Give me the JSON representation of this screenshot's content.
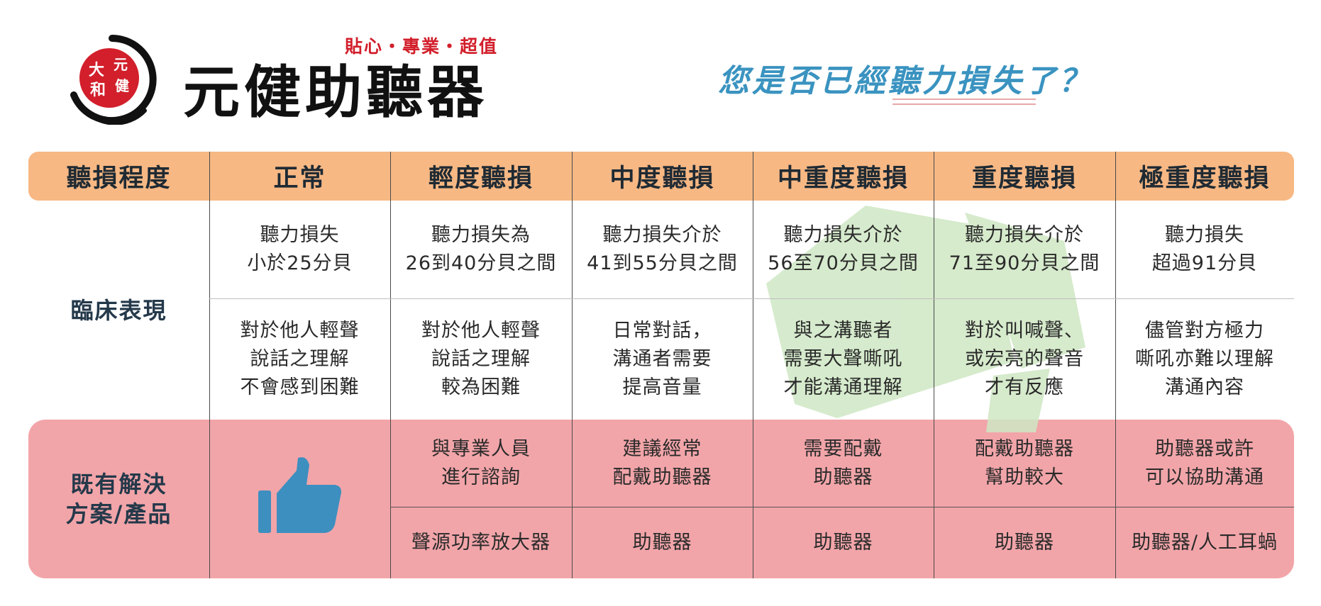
{
  "header": {
    "slogan": "貼心・專業・超值",
    "brand": "元健助聽器",
    "question": "您是否已經聽力損失了？",
    "logo_text": "大元和健"
  },
  "table": {
    "corner_label": "聽損程度",
    "columns": [
      "正常",
      "輕度聽損",
      "中度聽損",
      "中重度聽損",
      "重度聽損",
      "極重度聽損"
    ],
    "clinical_label": "臨床表現",
    "hearing_loss": [
      "聽力損失\n小於25分貝",
      "聽力損失為\n26到40分貝之間",
      "聽力損失介於\n41到55分貝之間",
      "聽力損失介於\n56至70分貝之間",
      "聽力損失介於\n71至90分貝之間",
      "聽力損失\n超過91分貝"
    ],
    "understanding": [
      "對於他人輕聲\n說話之理解\n不會感到困難",
      "對於他人輕聲\n說話之理解\n較為困難",
      "日常對話，\n溝通者需要\n提高音量",
      "與之溝聽者\n需要大聲嘶吼\n才能溝通理解",
      "對於叫喊聲、\n或宏亮的聲音\n才有反應",
      "儘管對方極力\n嘶吼亦難以理解\n溝通內容"
    ],
    "solutions_label_line1": "既有解決",
    "solutions_label_line2": "方案/產品",
    "recommendation": [
      "與專業人員\n進行諮詢",
      "建議經常\n配戴助聽器",
      "需要配戴\n助聽器",
      "配戴助聽器\n幫助較大",
      "助聽器或許\n可以協助溝通"
    ],
    "product": [
      "聲源功率放大器",
      "助聽器",
      "助聽器",
      "助聽器",
      "助聽器/人工耳蝸"
    ]
  },
  "colors": {
    "header_band": "#f7b884",
    "solution_band": "#f2a5a9",
    "question_blue": "#3a93c0",
    "slogan_red": "#d21f2b",
    "thumb_blue": "#3d8fbf",
    "watermark_green": "#cfe7c4"
  },
  "icons": [
    "thumbs-up-icon",
    "megaphone-watermark-icon",
    "brand-logo-icon"
  ]
}
